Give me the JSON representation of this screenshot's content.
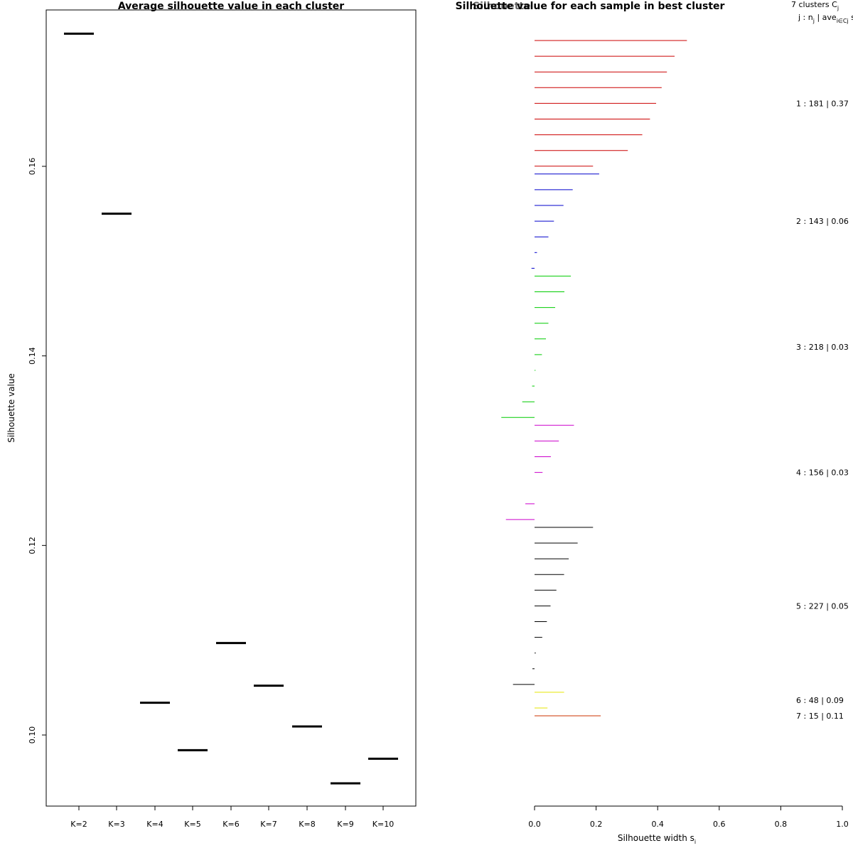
{
  "chart_data": [
    {
      "type": "scatter",
      "title": "Average silhouette value in each cluster",
      "xlabel": "",
      "ylabel": "Silhouette value",
      "categories": [
        "K=2",
        "K=3",
        "K=4",
        "K=5",
        "K=6",
        "K=7",
        "K=8",
        "K=9",
        "K=10"
      ],
      "values": [
        0.174,
        0.155,
        0.1034,
        0.0984,
        0.1097,
        0.1052,
        0.1009,
        0.0949,
        0.0975
      ],
      "yticks": [
        "0.10",
        "0.12",
        "0.14",
        "0.16"
      ],
      "ylim": [
        0.0925,
        0.1765
      ],
      "marker": "horizontal-segment"
    },
    {
      "type": "bar",
      "orientation": "horizontal",
      "title": "Silhouette value for each sample in best cluster",
      "overlay_title": "Silhouette",
      "xlabel": "Silhouette width s",
      "xlabel_sub": "i",
      "xlim": [
        0,
        1
      ],
      "xticks": [
        "0.0",
        "0.2",
        "0.4",
        "0.6",
        "0.8",
        "1.0"
      ],
      "legend_header_line1": "7 clusters  C",
      "legend_header_line1_sub": "j",
      "legend_header_line2": "j :  n",
      "legend_header_line2_sub": "j",
      "legend_header_line2_mid": " | ave",
      "legend_header_line2_sub2": "i∈Cj",
      "legend_header_line2_end": " s",
      "clusters": [
        {
          "label": "1 :  181  |  0.37",
          "color": "#cc0000",
          "values": [
            0.495,
            0.455,
            0.43,
            0.413,
            0.395,
            0.375,
            0.35,
            0.303,
            0.19
          ]
        },
        {
          "label": "2 :  143  |  0.06",
          "color": "#0000cc",
          "values": [
            0.21,
            0.124,
            0.094,
            0.063,
            0.045,
            0.008,
            -0.01
          ]
        },
        {
          "label": "3 :  218  |  0.03",
          "color": "#00cc00",
          "values": [
            0.118,
            0.097,
            0.067,
            0.045,
            0.037,
            0.024,
            0.003,
            -0.008,
            -0.04,
            -0.108
          ]
        },
        {
          "label": "4 :  156  |  0.03",
          "color": "#cc00cc",
          "values": [
            0.128,
            0.079,
            0.053,
            0.026,
            0.0,
            -0.03,
            -0.093
          ]
        },
        {
          "label": "5 :  227  |  0.05",
          "color": "#000000",
          "values": [
            0.19,
            0.14,
            0.111,
            0.096,
            0.071,
            0.052,
            0.04,
            0.025,
            0.004,
            -0.007,
            -0.07
          ]
        },
        {
          "label": "6 :  48  |  0.09",
          "color": "#e6e600",
          "values": [
            0.096,
            0.042
          ]
        },
        {
          "label": "7 :  15  |  0.11",
          "color": "#cc3300",
          "values": [
            0.215
          ]
        }
      ]
    }
  ]
}
